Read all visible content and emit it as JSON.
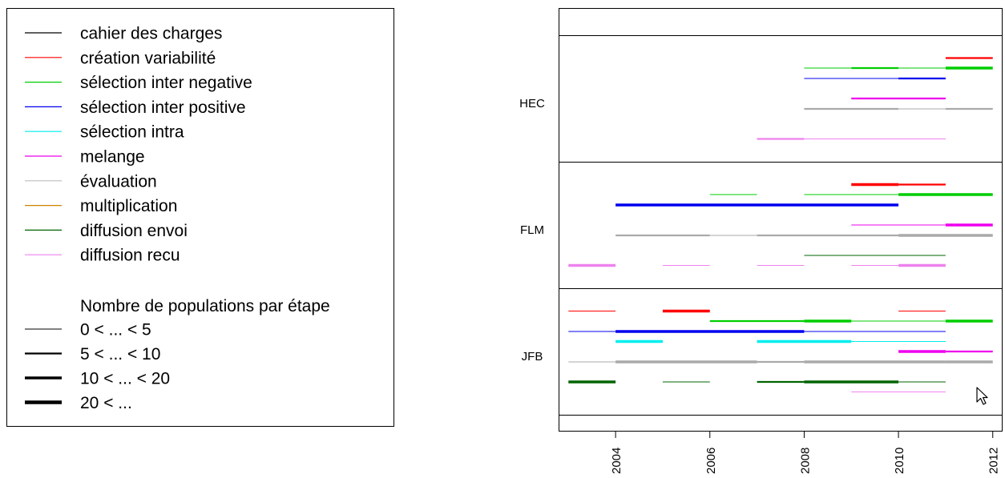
{
  "legend": {
    "activities": [
      {
        "label": "cahier des charges",
        "color": "#000000"
      },
      {
        "label": "création variabilité",
        "color": "#ff0000"
      },
      {
        "label": "sélection inter negative",
        "color": "#00cd00"
      },
      {
        "label": "sélection inter positive",
        "color": "#0000ee"
      },
      {
        "label": "sélection intra",
        "color": "#00eeee"
      },
      {
        "label": "melange",
        "color": "#ee00ee"
      },
      {
        "label": "évaluation",
        "color": "#bebebe"
      },
      {
        "label": "multiplication",
        "color": "#cd8500"
      },
      {
        "label": "diffusion envoi",
        "color": "#006400"
      },
      {
        "label": "diffusion recu",
        "color": "#ee82ee"
      }
    ],
    "size_title": "Nombre de populations par étape",
    "size_classes": [
      {
        "label": "0 < ... < 5",
        "level": 1
      },
      {
        "label": "5 < ... < 10",
        "level": 2
      },
      {
        "label": "10 < ... < 20",
        "level": 3
      },
      {
        "label": "20 < ...",
        "level": 4
      }
    ]
  },
  "chart_data": {
    "type": "timeline",
    "title": "",
    "xlabel": "",
    "ylabel": "",
    "xlim": [
      2002.8,
      2012.2
    ],
    "x_ticks": [
      2004,
      2006,
      2008,
      2010,
      2012
    ],
    "groups": [
      {
        "name": "HEC",
        "rows": [
          {
            "activity": "création variabilité",
            "segments": [
              [
                2011,
                2012,
                2
              ]
            ]
          },
          {
            "activity": "sélection inter negative",
            "segments": [
              [
                2008,
                2009,
                1
              ],
              [
                2009,
                2010,
                2
              ],
              [
                2010,
                2011,
                1
              ],
              [
                2011,
                2012,
                3
              ]
            ]
          },
          {
            "activity": "sélection inter positive",
            "segments": [
              [
                2008,
                2010,
                1
              ],
              [
                2010,
                2011,
                2
              ]
            ]
          },
          {
            "activity": "melange",
            "segments": [
              [
                2009,
                2011,
                2
              ]
            ]
          },
          {
            "activity": "évaluation",
            "segments": [
              [
                2008,
                2010,
                2
              ],
              [
                2010,
                2011,
                1
              ],
              [
                2011,
                2012,
                2
              ]
            ]
          },
          {
            "activity": "diffusion recu",
            "segments": [
              [
                2007,
                2008,
                2
              ],
              [
                2008,
                2011,
                1
              ]
            ]
          }
        ]
      },
      {
        "name": "FLM",
        "rows": [
          {
            "activity": "création variabilité",
            "segments": [
              [
                2009,
                2010,
                3
              ],
              [
                2010,
                2011,
                2
              ]
            ]
          },
          {
            "activity": "sélection inter negative",
            "segments": [
              [
                2006,
                2007,
                1
              ],
              [
                2008,
                2010,
                1
              ],
              [
                2010,
                2012,
                3
              ]
            ]
          },
          {
            "activity": "sélection inter positive",
            "segments": [
              [
                2004,
                2010,
                3
              ]
            ]
          },
          {
            "activity": "melange",
            "segments": [
              [
                2009,
                2011,
                1
              ],
              [
                2011,
                2012,
                3
              ]
            ]
          },
          {
            "activity": "évaluation",
            "segments": [
              [
                2004,
                2006,
                2
              ],
              [
                2006,
                2007,
                1
              ],
              [
                2007,
                2010,
                2
              ],
              [
                2010,
                2012,
                3
              ]
            ]
          },
          {
            "activity": "diffusion envoi",
            "segments": [
              [
                2008,
                2011,
                1
              ]
            ]
          },
          {
            "activity": "diffusion recu",
            "segments": [
              [
                2003,
                2004,
                3
              ],
              [
                2005,
                2006,
                1
              ],
              [
                2007,
                2008,
                1
              ],
              [
                2009,
                2010,
                1
              ],
              [
                2010,
                2011,
                3
              ]
            ]
          }
        ]
      },
      {
        "name": "JFB",
        "rows": [
          {
            "activity": "création variabilité",
            "segments": [
              [
                2003,
                2004,
                1
              ],
              [
                2005,
                2006,
                3
              ],
              [
                2010,
                2011,
                1
              ]
            ]
          },
          {
            "activity": "sélection inter negative",
            "segments": [
              [
                2006,
                2008,
                2
              ],
              [
                2008,
                2009,
                3
              ],
              [
                2009,
                2011,
                1
              ],
              [
                2011,
                2012,
                3
              ]
            ]
          },
          {
            "activity": "sélection inter positive",
            "segments": [
              [
                2003,
                2004,
                1
              ],
              [
                2004,
                2008,
                3
              ],
              [
                2008,
                2011,
                1
              ]
            ]
          },
          {
            "activity": "sélection intra",
            "segments": [
              [
                2004,
                2005,
                3
              ],
              [
                2007,
                2009,
                3
              ],
              [
                2009,
                2011,
                1
              ]
            ]
          },
          {
            "activity": "melange",
            "segments": [
              [
                2010,
                2011,
                3
              ],
              [
                2011,
                2012,
                2
              ]
            ]
          },
          {
            "activity": "évaluation",
            "segments": [
              [
                2003,
                2004,
                1
              ],
              [
                2004,
                2007,
                3
              ],
              [
                2007,
                2008,
                2
              ],
              [
                2008,
                2011,
                3
              ],
              [
                2011,
                2012,
                3
              ]
            ]
          },
          {
            "activity": "diffusion envoi",
            "segments": [
              [
                2003,
                2004,
                3
              ],
              [
                2005,
                2006,
                1
              ],
              [
                2007,
                2008,
                2
              ],
              [
                2008,
                2010,
                3
              ],
              [
                2010,
                2011,
                1
              ]
            ]
          },
          {
            "activity": "diffusion recu",
            "segments": [
              [
                2009,
                2011,
                1
              ]
            ]
          }
        ]
      }
    ]
  }
}
